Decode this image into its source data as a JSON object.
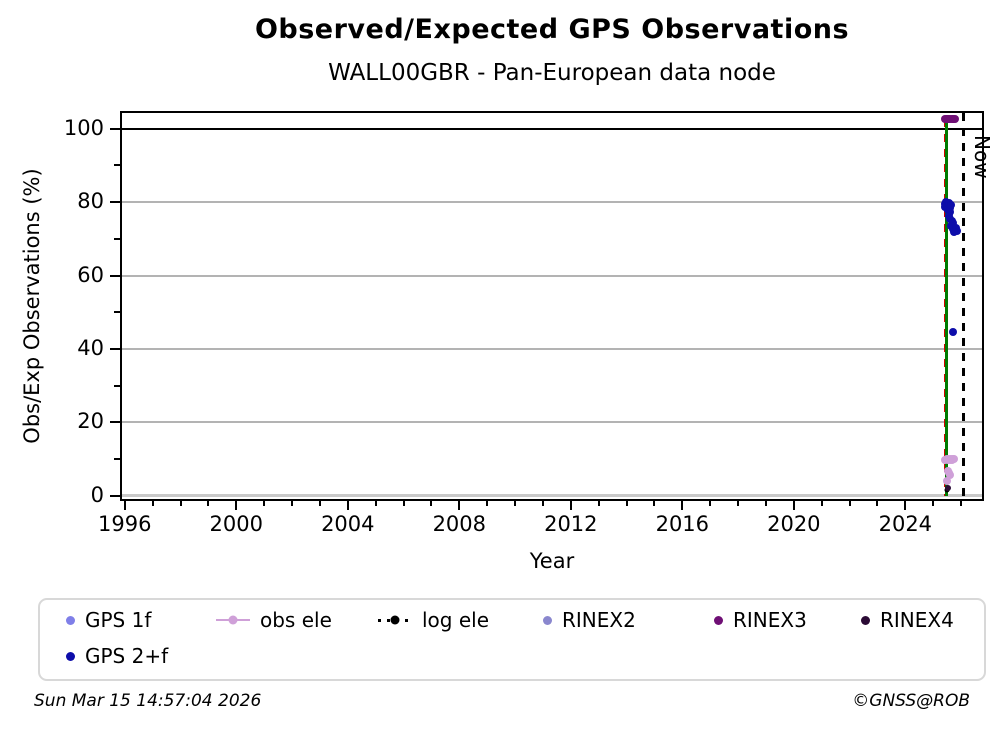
{
  "chart_data": {
    "type": "scatter",
    "title": "Observed/Expected GPS Observations",
    "subtitle": "WALL00GBR - Pan-European data node",
    "xlabel": "Year",
    "ylabel": "Obs/Exp Observations (%)",
    "xlim": [
      1995.9,
      2026.75
    ],
    "ylim": [
      -0.9,
      104.3
    ],
    "x_major_ticks": [
      1996,
      2000,
      2004,
      2008,
      2012,
      2016,
      2020,
      2024
    ],
    "x_minor_tick_step": 1,
    "y_major_ticks": [
      0,
      20,
      40,
      60,
      80,
      100
    ],
    "y_minor_ticks": [
      10,
      30,
      50,
      70,
      90
    ],
    "grid": {
      "horizontal_at": [
        20,
        40,
        60,
        80
      ],
      "color": "#b3b3b3",
      "vertical": false
    },
    "reference_hlines": [
      {
        "y": 100,
        "color": "#000000",
        "width": 2
      },
      {
        "y": 0,
        "color": "#c9c9c9",
        "width": 3
      }
    ],
    "vlines": [
      {
        "name": "event-line-red",
        "x": 2025.45,
        "y0": 0,
        "y1": 102.8,
        "color": "#d40000",
        "style": "dashed"
      },
      {
        "name": "event-line-green",
        "x": 2025.49,
        "y0": 0,
        "y1": 102.8,
        "color": "#007a00",
        "style": "solid"
      },
      {
        "name": "now-line",
        "x": 2026.1,
        "y0": -0.9,
        "y1": 104.3,
        "color": "#000000",
        "style": "dashed",
        "label": "Now"
      }
    ],
    "series": [
      {
        "name": "GPS 1f",
        "color": "#7f7fe8",
        "marker_size": 7,
        "points": []
      },
      {
        "name": "GPS 2+f",
        "color": "#0d0daa",
        "marker_size": 8,
        "points": [
          [
            2025.42,
            79.5
          ],
          [
            2025.46,
            80.0
          ],
          [
            2025.5,
            79.8
          ],
          [
            2025.44,
            78.6
          ],
          [
            2025.48,
            78.8
          ],
          [
            2025.53,
            79.3
          ],
          [
            2025.56,
            79.8
          ],
          [
            2025.58,
            79.0
          ],
          [
            2025.52,
            78.0
          ],
          [
            2025.56,
            77.6
          ],
          [
            2025.6,
            78.4
          ],
          [
            2025.63,
            79.2
          ],
          [
            2025.62,
            77.3
          ],
          [
            2025.55,
            76.2
          ],
          [
            2025.6,
            75.4
          ],
          [
            2025.66,
            74.8
          ],
          [
            2025.7,
            74.3
          ],
          [
            2025.64,
            73.4
          ],
          [
            2025.72,
            72.6
          ],
          [
            2025.8,
            73.0
          ],
          [
            2025.84,
            72.2
          ],
          [
            2025.76,
            71.8
          ],
          [
            2025.7,
            44.5
          ]
        ]
      },
      {
        "name": "obs ele",
        "color": "#cfa0d8",
        "marker_size": 8,
        "points": [
          [
            2025.44,
            9.8
          ],
          [
            2025.48,
            10.0
          ],
          [
            2025.52,
            9.6
          ],
          [
            2025.56,
            10.1
          ],
          [
            2025.6,
            9.7
          ],
          [
            2025.64,
            10.0
          ],
          [
            2025.68,
            9.8
          ],
          [
            2025.72,
            10.1
          ],
          [
            2025.76,
            9.9
          ],
          [
            2025.52,
            6.8
          ],
          [
            2025.56,
            6.2
          ],
          [
            2025.6,
            5.6
          ],
          [
            2025.5,
            4.0
          ]
        ]
      },
      {
        "name": "log ele",
        "color": "#000000",
        "marker_size": 5,
        "points": [
          [
            2025.49,
            1.5
          ]
        ]
      },
      {
        "name": "RINEX2",
        "color": "#8a87ce",
        "marker_size": 7,
        "points": []
      },
      {
        "name": "RINEX3",
        "color": "#6f0f75",
        "marker_size": 8,
        "points": [
          [
            2025.42,
            102.7
          ],
          [
            2025.46,
            102.7
          ],
          [
            2025.5,
            102.8
          ],
          [
            2025.54,
            102.6
          ],
          [
            2025.58,
            102.7
          ],
          [
            2025.62,
            102.8
          ],
          [
            2025.66,
            102.6
          ],
          [
            2025.7,
            102.7
          ],
          [
            2025.74,
            102.7
          ],
          [
            2025.78,
            102.6
          ]
        ]
      },
      {
        "name": "RINEX4",
        "color": "#2b0b35",
        "marker_size": 6,
        "points": [
          [
            2025.53,
            2.0
          ]
        ]
      }
    ]
  },
  "legend": {
    "items": [
      {
        "label": "GPS 1f",
        "marker": "dot",
        "color": "#7f7fe8"
      },
      {
        "label": "obs ele",
        "marker": "line-dot",
        "color": "#cfa0d8"
      },
      {
        "label": "log ele",
        "marker": "dotted-line-dot",
        "color": "#000000"
      },
      {
        "label": "RINEX2",
        "marker": "dot",
        "color": "#8a87ce"
      },
      {
        "label": "RINEX3",
        "marker": "dot",
        "color": "#6f0f75"
      },
      {
        "label": "RINEX4",
        "marker": "dot",
        "color": "#2b0b35"
      },
      {
        "label": "GPS 2+f",
        "marker": "dot",
        "color": "#0d0daa"
      }
    ]
  },
  "footer": {
    "timestamp": "Sun Mar 15 14:57:04 2026",
    "copyright": "©GNSS@ROB"
  }
}
